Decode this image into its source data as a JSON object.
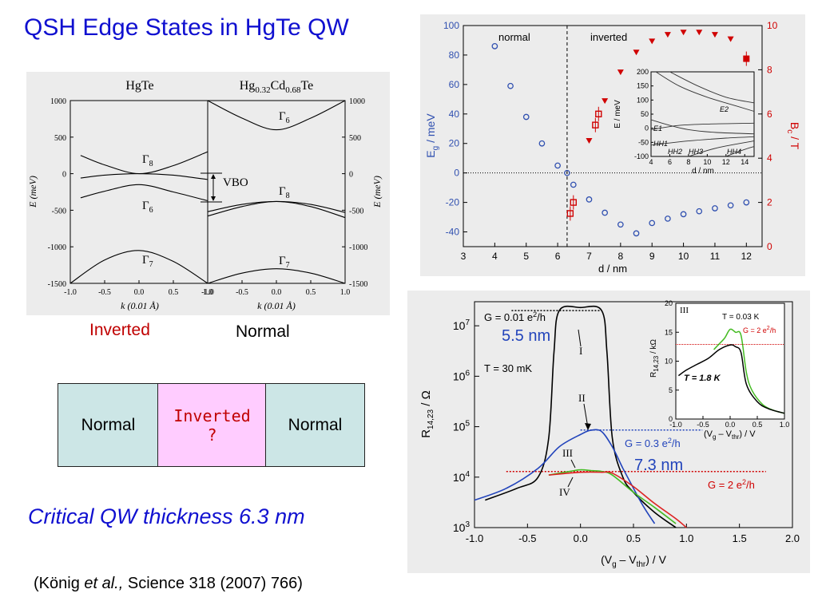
{
  "slide": {
    "title": "QSH Edge States in HgTe QW",
    "label_inverted": "Inverted",
    "label_normal": "Normal",
    "schematic": {
      "left": "Normal",
      "middle_line1": "Inverted",
      "middle_line2": "?",
      "right": "Normal"
    },
    "critical_text": "Critical QW thickness 6.3 nm",
    "reference": {
      "prefix": "(König ",
      "italic": "et al.,",
      "suffix": " Science 318 (2007) 766)"
    }
  },
  "colors": {
    "title_blue": "#1010d0",
    "inverted_red": "#c00000",
    "box_cyan": "#cce6e6",
    "box_pink": "#ffccff",
    "marker_blue": "#3050b0",
    "marker_red": "#d00000",
    "trace_green": "#44bb22"
  },
  "chart_data": [
    {
      "type": "line",
      "title_left": "HgTe",
      "title_right": "Hg0.32Cd0.68Te",
      "xlabel": "k (0.01 Å)",
      "ylabel": "E (meV)",
      "xlim": [
        -1.0,
        1.0
      ],
      "ylim": [
        -1500,
        1000
      ],
      "x_ticks": [
        "-1.0",
        "-0.5",
        "0.0",
        "0.5",
        "1.0"
      ],
      "y_ticks": [
        "1000",
        "500",
        "0",
        "-500",
        "-1000",
        "-1500"
      ],
      "band_labels_left": [
        "Γ8",
        "Γ6",
        "Γ7"
      ],
      "band_labels_right": [
        "Γ6",
        "Γ8",
        "Γ7"
      ],
      "annotation": "VBO",
      "series_left": [
        {
          "band": "Γ8 upper",
          "x": [
            -0.85,
            -0.5,
            0,
            0.5,
            1.0
          ],
          "y": [
            250,
            120,
            0,
            110,
            300
          ]
        },
        {
          "band": "Γ8 lower",
          "x": [
            -0.85,
            -0.5,
            0,
            0.5,
            1.0
          ],
          "y": [
            -60,
            -20,
            0,
            -20,
            -80
          ]
        },
        {
          "band": "Γ6",
          "x": [
            -0.85,
            -0.5,
            0,
            0.5,
            1.0
          ],
          "y": [
            -330,
            -240,
            -150,
            -250,
            -370
          ]
        },
        {
          "band": "Γ7",
          "x": [
            -1.0,
            -0.5,
            0,
            0.5,
            1.0
          ],
          "y": [
            -1500,
            -1180,
            -1050,
            -1200,
            -1500
          ]
        }
      ],
      "series_right": [
        {
          "band": "Γ6",
          "x": [
            -1.0,
            -0.5,
            0,
            0.5,
            1.0
          ],
          "y": [
            1000,
            760,
            600,
            760,
            1000
          ]
        },
        {
          "band": "Γ8",
          "x": [
            -1.0,
            -0.5,
            0,
            0.5,
            1.0
          ],
          "y": [
            -520,
            -420,
            -380,
            -420,
            -530
          ]
        },
        {
          "band": "Γ8 light",
          "x": [
            -1.0,
            -0.5,
            0,
            0.5,
            1.0
          ],
          "y": [
            -580,
            -450,
            -380,
            -450,
            -600
          ]
        },
        {
          "band": "Γ7",
          "x": [
            -1.0,
            -0.5,
            0,
            0.5,
            1.0
          ],
          "y": [
            -1500,
            -1360,
            -1300,
            -1360,
            -1500
          ]
        }
      ]
    },
    {
      "type": "scatter",
      "xlabel": "d / nm",
      "ylabel": "Eg / meV",
      "ylabel_right": "Bc / T",
      "xlim": [
        3,
        12.5
      ],
      "ylim": [
        -50,
        100
      ],
      "y2lim": [
        0,
        10
      ],
      "x_ticks": [
        "3",
        "4",
        "5",
        "6",
        "7",
        "8",
        "9",
        "10",
        "11",
        "12"
      ],
      "y_ticks": [
        "100",
        "80",
        "60",
        "40",
        "20",
        "0",
        "-20",
        "-40"
      ],
      "y2_ticks": [
        "10",
        "8",
        "6",
        "4",
        "2",
        "0"
      ],
      "region_labels": [
        "normal",
        "inverted"
      ],
      "critical_d": 6.3,
      "series": [
        {
          "axis": "left",
          "marker": "circle",
          "x": [
            4.0,
            4.5,
            5.0,
            5.5,
            6.0,
            6.3,
            6.5,
            7.0,
            7.5,
            8.0,
            8.5,
            9.0,
            9.5,
            10.0,
            10.5,
            11.0,
            11.5,
            12.0
          ],
          "y": [
            86,
            59,
            38,
            20,
            5,
            0,
            -8,
            -18,
            -27,
            -35,
            -41,
            -34,
            -31,
            -28,
            -26,
            -24,
            -22,
            -20
          ]
        },
        {
          "axis": "right",
          "marker": "triangle",
          "x": [
            7.0,
            7.5,
            8.0,
            8.5,
            9.0,
            9.5,
            10.0,
            10.5,
            11.0,
            11.5
          ],
          "y": [
            4.8,
            6.6,
            7.9,
            8.8,
            9.3,
            9.6,
            9.7,
            9.7,
            9.6,
            9.4
          ]
        },
        {
          "axis": "right",
          "marker": "open-square",
          "x": [
            6.4,
            6.5,
            7.2,
            7.3
          ],
          "y": [
            1.5,
            2.0,
            5.5,
            6.0
          ]
        },
        {
          "axis": "right",
          "marker": "filled-square",
          "x": [
            12.0
          ],
          "y": [
            8.5
          ]
        }
      ],
      "inset": {
        "xlabel": "d / nm",
        "ylabel": "E / meV",
        "xlim": [
          4,
          15
        ],
        "ylim": [
          -100,
          200
        ],
        "x_ticks": [
          "4",
          "6",
          "8",
          "10",
          "12",
          "14"
        ],
        "y_ticks": [
          "200",
          "150",
          "100",
          "50",
          "0",
          "-50",
          "-100"
        ],
        "band_labels": [
          "E2",
          "E1",
          "HH1",
          "HH2",
          "HH3",
          "HH4"
        ]
      }
    },
    {
      "type": "line",
      "xlabel": "(Vg – Vthr) / V",
      "ylabel": "R14,23 / Ω",
      "yscale": "log",
      "xlim": [
        -1.0,
        2.0
      ],
      "ylim": [
        1000,
        30000000
      ],
      "x_ticks": [
        "-1.0",
        "-0.5",
        "0.0",
        "0.5",
        "1.0",
        "1.5",
        "2.0"
      ],
      "y_ticks": [
        "10^7",
        "10^6",
        "10^5",
        "10^4",
        "10^3"
      ],
      "annotations": [
        "G = 0.01 e²/h",
        "5.5 nm",
        "T = 30 mK",
        "G = 0.3 e²/h",
        "7.3 nm",
        "G = 2 e²/h",
        "I",
        "II",
        "III",
        "IV"
      ],
      "guide_levels": [
        {
          "y": 20000000,
          "label": "G = 0.01 e²/h"
        },
        {
          "y": 86000,
          "label": "G = 0.3 e²/h"
        },
        {
          "y": 12900,
          "label": "G = 2 e²/h"
        }
      ],
      "series": [
        {
          "name": "I",
          "color": "#000000",
          "x": [
            -0.9,
            -0.6,
            -0.4,
            -0.3,
            -0.25,
            -0.2,
            0.0,
            0.2,
            0.25,
            0.3,
            0.4,
            0.5,
            0.7,
            0.9
          ],
          "y": [
            3500,
            6000,
            10000,
            60000,
            3000000,
            20000000,
            23000000,
            20000000,
            3000000,
            60000,
            10000,
            5000,
            2000,
            1000
          ]
        },
        {
          "name": "II",
          "color": "#2244bb",
          "x": [
            -1.0,
            -0.7,
            -0.4,
            -0.2,
            0.0,
            0.1,
            0.2,
            0.3,
            0.4,
            0.5,
            0.6,
            0.7
          ],
          "y": [
            3500,
            6000,
            15000,
            40000,
            70000,
            85000,
            80000,
            40000,
            15000,
            6000,
            2500,
            1200
          ]
        },
        {
          "name": "III",
          "color": "#44bb22",
          "x": [
            -0.3,
            -0.1,
            0.0,
            0.1,
            0.2,
            0.3,
            0.5,
            0.7,
            0.9
          ],
          "y": [
            11000,
            13000,
            14000,
            13500,
            13000,
            11000,
            5000,
            2500,
            1200
          ]
        },
        {
          "name": "IV",
          "color": "#dd2222",
          "x": [
            -0.3,
            0.0,
            0.2,
            0.3,
            0.5,
            0.7,
            0.9,
            1.0
          ],
          "y": [
            11000,
            12500,
            12500,
            12000,
            6500,
            3000,
            1500,
            1000
          ]
        }
      ],
      "inset": {
        "label": "III",
        "xlabel": "(Vg – Vthr) / V",
        "ylabel": "R14,23 / kΩ",
        "xlim": [
          -1.0,
          1.0
        ],
        "ylim": [
          0,
          20
        ],
        "x_ticks": [
          "-1.0",
          "-0.5",
          "0.0",
          "0.5",
          "1.0"
        ],
        "y_ticks": [
          "20",
          "15",
          "10",
          "5",
          "0"
        ],
        "annotations": [
          "T = 0.03 K",
          "G = 2 e²/h",
          "T = 1.8 K"
        ],
        "guide_level": 12.9,
        "series": [
          {
            "name": "T = 0.03 K",
            "color": "#44bb22",
            "x": [
              -0.3,
              -0.2,
              -0.1,
              0.0,
              0.1,
              0.2,
              0.3,
              0.4,
              0.6,
              0.8,
              1.0
            ],
            "y": [
              12,
              13,
              14,
              15.5,
              15,
              14.5,
              8,
              5,
              2.5,
              1.5,
              1
            ]
          },
          {
            "name": "T = 1.8 K",
            "color": "#000000",
            "x": [
              -0.95,
              -0.8,
              -0.6,
              -0.4,
              -0.2,
              0.0,
              0.1,
              0.2,
              0.3,
              0.5,
              0.7,
              1.0
            ],
            "y": [
              7.5,
              8.5,
              9.5,
              10.5,
              12,
              12.8,
              12.5,
              11.5,
              6,
              3,
              1.8,
              1
            ]
          }
        ]
      }
    }
  ]
}
